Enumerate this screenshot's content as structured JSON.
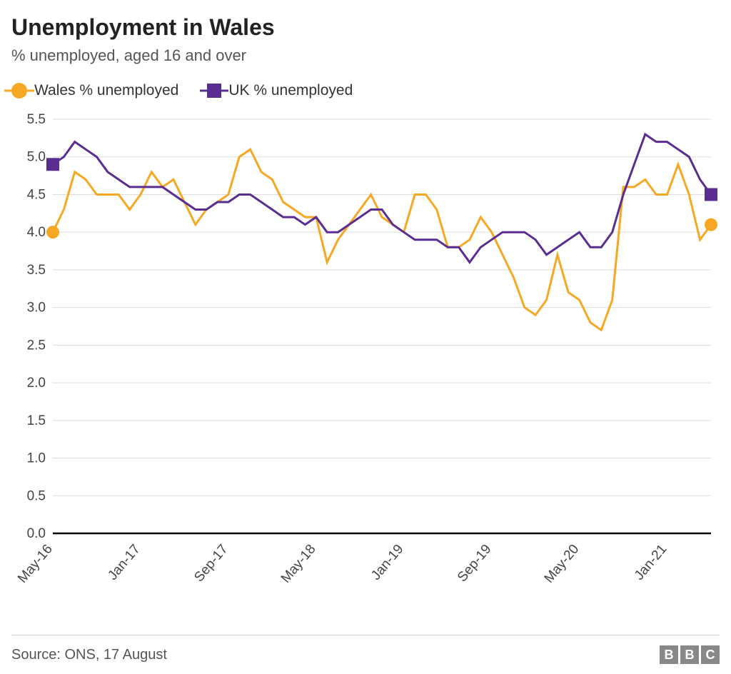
{
  "title": "Unemployment in Wales",
  "subtitle": "% unemployed, aged 16 and over",
  "source": "Source: ONS, 17 August",
  "logo_letters": [
    "B",
    "B",
    "C"
  ],
  "chart": {
    "type": "line",
    "background_color": "#ffffff",
    "grid_color": "#dddddd",
    "axis_color": "#000000",
    "text_color": "#444444",
    "title_fontsize": 32,
    "subtitle_fontsize": 22,
    "label_fontsize": 19,
    "legend_fontsize": 21,
    "line_width": 3,
    "endpoint_marker_size": 9,
    "ylim": [
      0,
      5.5
    ],
    "ytick_step": 0.5,
    "yticks": [
      "0.0",
      "0.5",
      "1.0",
      "1.5",
      "2.0",
      "2.5",
      "3.0",
      "3.5",
      "4.0",
      "4.5",
      "5.0",
      "5.5"
    ],
    "x_tick_labels": [
      "May-16",
      "Jan-17",
      "Sep-17",
      "May-18",
      "Jan-19",
      "Sep-19",
      "May-20",
      "Jan-21"
    ],
    "x_tick_indices": [
      0,
      8,
      16,
      24,
      32,
      40,
      48,
      56
    ],
    "n_points": 61,
    "series": [
      {
        "name": "Wales % unemployed",
        "color": "#f7a823",
        "marker": "circle",
        "values": [
          4.0,
          4.3,
          4.8,
          4.7,
          4.5,
          4.5,
          4.5,
          4.3,
          4.5,
          4.8,
          4.6,
          4.7,
          4.4,
          4.1,
          4.3,
          4.4,
          4.5,
          5.0,
          5.1,
          4.8,
          4.7,
          4.4,
          4.3,
          4.2,
          4.2,
          3.6,
          3.9,
          4.1,
          4.3,
          4.5,
          4.2,
          4.1,
          4.0,
          4.5,
          4.5,
          4.3,
          3.8,
          3.8,
          3.9,
          4.2,
          4.0,
          3.7,
          3.4,
          3.0,
          2.9,
          3.1,
          3.7,
          3.2,
          3.1,
          2.8,
          2.7,
          3.1,
          4.6,
          4.6,
          4.7,
          4.5,
          4.5,
          4.9,
          4.5,
          3.9,
          4.1
        ]
      },
      {
        "name": "UK % unemployed",
        "color": "#5a2d91",
        "marker": "square",
        "values": [
          4.9,
          5.0,
          5.2,
          5.1,
          5.0,
          4.8,
          4.7,
          4.6,
          4.6,
          4.6,
          4.6,
          4.5,
          4.4,
          4.3,
          4.3,
          4.4,
          4.4,
          4.5,
          4.5,
          4.4,
          4.3,
          4.2,
          4.2,
          4.1,
          4.2,
          4.0,
          4.0,
          4.1,
          4.2,
          4.3,
          4.3,
          4.1,
          4.0,
          3.9,
          3.9,
          3.9,
          3.8,
          3.8,
          3.6,
          3.8,
          3.9,
          4.0,
          4.0,
          4.0,
          3.9,
          3.7,
          3.8,
          3.9,
          4.0,
          3.8,
          3.8,
          4.0,
          4.5,
          4.9,
          5.3,
          5.2,
          5.2,
          5.1,
          5.0,
          4.7,
          4.5
        ]
      }
    ]
  }
}
